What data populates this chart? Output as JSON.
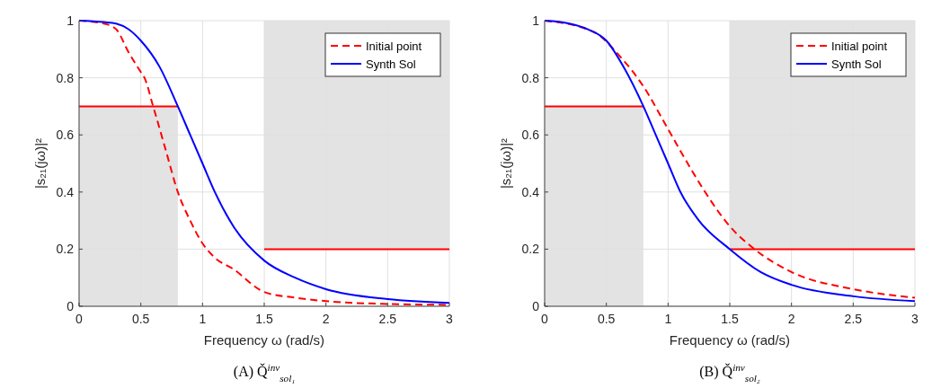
{
  "chart_data": [
    {
      "type": "line",
      "xlabel": "Frequency ω (rad/s)",
      "ylabel": "|s₂₁(jω)|²",
      "xlim": [
        0,
        3
      ],
      "ylim": [
        0,
        1
      ],
      "xticks": [
        0,
        0.5,
        1,
        1.5,
        2,
        2.5,
        3
      ],
      "yticks": [
        0,
        0.2,
        0.4,
        0.6,
        0.8,
        1
      ],
      "grid": true,
      "legend": "top right",
      "annotations": [
        "(A) Q̌$^{inv}$$_{sol₁}$"
      ],
      "series": [
        {
          "x": [
            0,
            0.8
          ],
          "values": [
            0.7,
            0.7
          ],
          "lower": [
            0,
            0
          ],
          "upper": [
            0.7,
            0.7
          ],
          "color": "#ff0000",
          "line_style": "solid"
        },
        {
          "x": [
            1.5,
            3
          ],
          "values": [
            0.2,
            0.2
          ],
          "lower": [
            0.2,
            0.2
          ],
          "upper": [
            1,
            1
          ],
          "color": "#ff0000",
          "line_style": "solid"
        },
        {
          "name": "Initial point",
          "color": "#ff0000",
          "line_style": "dashed",
          "x": [
            0,
            0.2,
            0.3,
            0.4,
            0.5,
            0.53,
            0.6,
            0.7,
            0.8,
            0.9,
            1,
            1.1,
            1.25,
            1.5,
            1.75,
            2,
            2.5,
            3
          ],
          "values": [
            1,
            0.99,
            0.97,
            0.89,
            0.82,
            0.8,
            0.7,
            0.55,
            0.4,
            0.3,
            0.22,
            0.17,
            0.13,
            0.05,
            0.03,
            0.018,
            0.008,
            0.005
          ]
        },
        {
          "name": "Synth Sol",
          "color": "#0000ff",
          "line_style": "solid",
          "x": [
            0,
            0.2,
            0.3,
            0.4,
            0.5,
            0.65,
            0.8,
            0.9,
            1,
            1.1,
            1.25,
            1.5,
            1.75,
            2,
            2.5,
            3
          ],
          "values": [
            1,
            0.995,
            0.99,
            0.97,
            0.93,
            0.84,
            0.7,
            0.6,
            0.5,
            0.4,
            0.28,
            0.16,
            0.1,
            0.06,
            0.025,
            0.012
          ]
        }
      ]
    },
    {
      "type": "line",
      "xlabel": "Frequency ω (rad/s)",
      "ylabel": "|s₂₁(jω)|²",
      "xlim": [
        0,
        3
      ],
      "ylim": [
        0,
        1
      ],
      "xticks": [
        0,
        0.5,
        1,
        1.5,
        2,
        2.5,
        3
      ],
      "yticks": [
        0,
        0.2,
        0.4,
        0.6,
        0.8,
        1
      ],
      "grid": true,
      "legend": "top right",
      "annotations": [
        "(B) Q̌$^{inv}$$_{sol₂}$"
      ],
      "series": [
        {
          "x": [
            0,
            0.8
          ],
          "values": [
            0.7,
            0.7
          ],
          "lower": [
            0,
            0
          ],
          "upper": [
            0.7,
            0.7
          ],
          "color": "#ff0000",
          "line_style": "solid"
        },
        {
          "x": [
            1.5,
            3
          ],
          "values": [
            0.2,
            0.2
          ],
          "lower": [
            0.2,
            0.2
          ],
          "upper": [
            1,
            1
          ],
          "color": "#ff0000",
          "line_style": "solid"
        },
        {
          "name": "Initial point",
          "color": "#ff0000",
          "line_style": "dashed",
          "x": [
            0,
            0.4,
            0.6,
            0.8,
            1,
            1.2,
            1.3,
            1.5,
            1.7,
            2,
            2.5,
            3
          ],
          "values": [
            1,
            0.96,
            0.88,
            0.77,
            0.62,
            0.47,
            0.4,
            0.28,
            0.2,
            0.12,
            0.06,
            0.03
          ]
        },
        {
          "name": "Synth Sol",
          "color": "#0000ff",
          "line_style": "solid",
          "x": [
            0,
            0.2,
            0.35,
            0.5,
            0.65,
            0.8,
            0.9,
            1,
            1.1,
            1.25,
            1.5,
            1.75,
            2,
            2.5,
            3
          ],
          "values": [
            1,
            0.99,
            0.97,
            0.93,
            0.83,
            0.7,
            0.6,
            0.5,
            0.4,
            0.3,
            0.2,
            0.12,
            0.075,
            0.035,
            0.018
          ]
        }
      ]
    }
  ]
}
